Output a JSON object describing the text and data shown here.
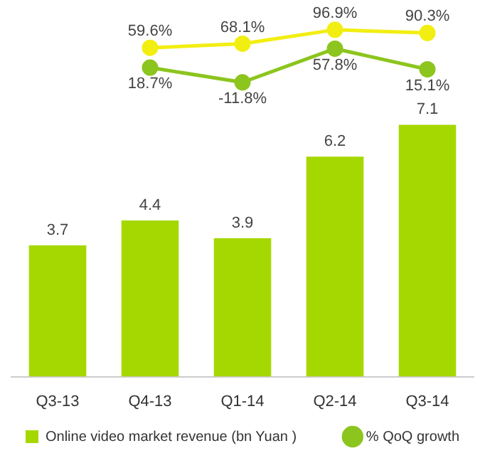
{
  "chart_data": [
    {
      "type": "line",
      "categories": [
        null,
        null,
        null,
        null,
        null
      ],
      "series": [
        {
          "name": "% QoQ growth",
          "color": "#8cc51e",
          "values": [
            null,
            18.7,
            -11.8,
            57.8,
            15.1
          ],
          "value_labels": [
            null,
            "18.7%",
            "-11.8%",
            "57.8%",
            "15.1%"
          ]
        },
        {
          "color": "#f2ee12",
          "values": [
            null,
            59.6,
            68.1,
            96.9,
            90.3
          ],
          "value_labels": [
            null,
            "59.6%",
            "68.1%",
            "96.9%",
            "90.3%"
          ]
        }
      ],
      "marker": "circle",
      "legend": "bottom right",
      "tick_labels": false
    },
    {
      "type": "bar",
      "categories": [
        "Q3-13",
        "Q4-13",
        "Q1-14",
        "Q2-14",
        "Q3-14"
      ],
      "series": [
        {
          "name": "Online video market revenue (bn Yuan )",
          "color": "#a5d800",
          "values": [
            3.7,
            4.4,
            3.9,
            6.2,
            7.1
          ],
          "value_labels": [
            "3.7",
            "4.4",
            "3.9",
            "6.2",
            "7.1"
          ]
        }
      ],
      "legend": "bottom left",
      "tick_labels": "x"
    }
  ]
}
